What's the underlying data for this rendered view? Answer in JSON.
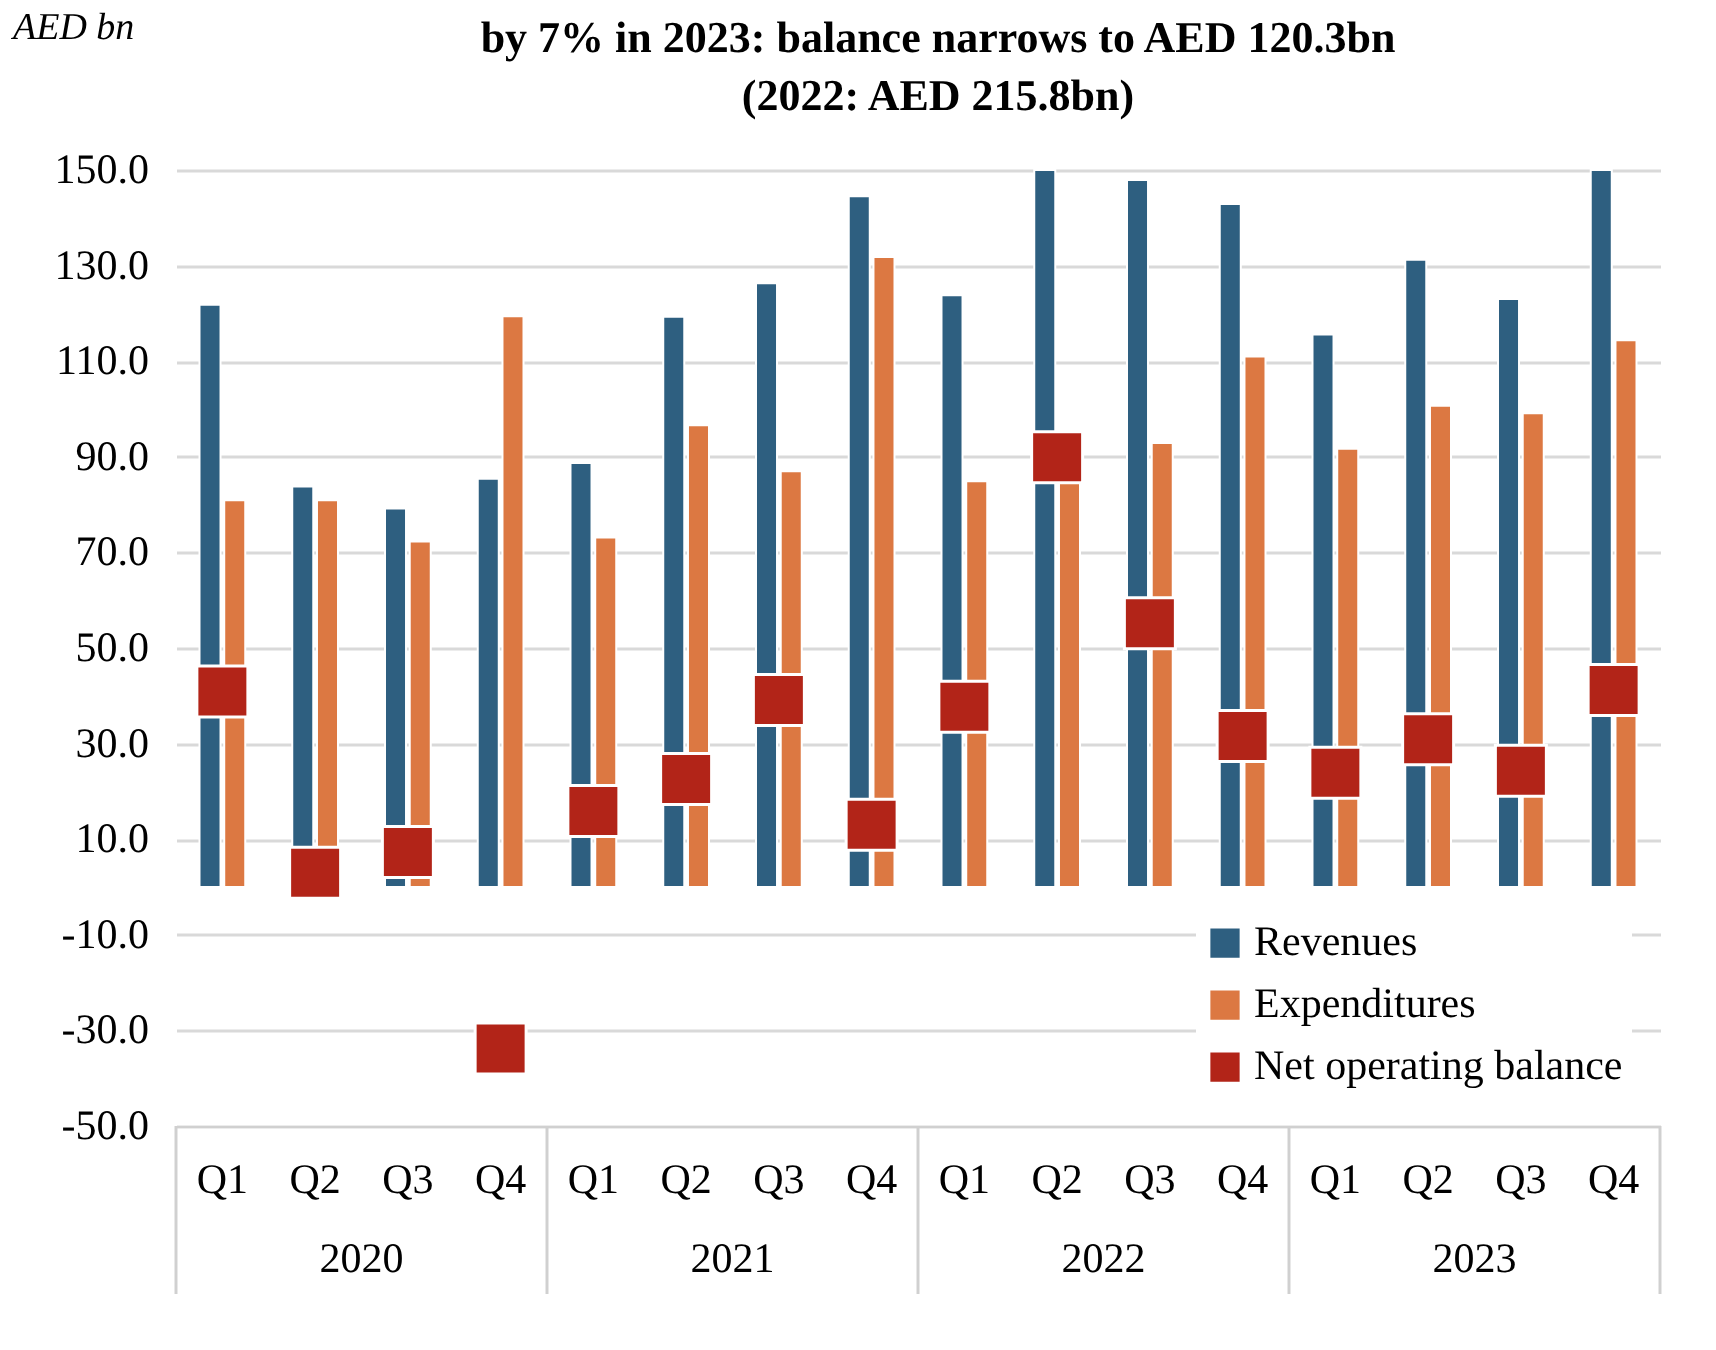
{
  "chart_data": {
    "type": "bar",
    "title": [
      "by 7% in 2023: balance narrows to AED 120.3bn",
      "(2022: AED 215.8bn)"
    ],
    "ylabel": "AED bn",
    "categories": [
      "Q1",
      "Q2",
      "Q3",
      "Q4",
      "Q1",
      "Q2",
      "Q3",
      "Q4",
      "Q1",
      "Q2",
      "Q3",
      "Q4",
      "Q1",
      "Q2",
      "Q3",
      "Q4"
    ],
    "annotations": [
      "2020",
      "2021",
      "2022",
      "2023"
    ],
    "series": [
      {
        "name": "Revenues",
        "color": "#2e5f80",
        "values": [
          121.8,
          83.8,
          79.2,
          85.4,
          88.7,
          119.3,
          126.3,
          144.5,
          123.8,
          150,
          147.9,
          142.9,
          115.6,
          131.2,
          123.0,
          150
        ]
      },
      {
        "name": "Expenditures",
        "color": "#dc7842",
        "values": [
          80.9,
          80.9,
          72.3,
          119.4,
          73.1,
          96.6,
          87.0,
          131.8,
          84.9,
          84.7,
          92.9,
          111.0,
          91.7,
          100.7,
          99.1,
          114.4
        ]
      },
      {
        "name": "Net operating balance",
        "type": "scatter",
        "marker": "square",
        "color": "#b22418",
        "values": [
          40.9,
          3.0,
          7.3,
          -33.8,
          15.9,
          22.6,
          39.1,
          13.0,
          37.7,
          89.9,
          55.2,
          31.6,
          23.9,
          30.9,
          24.3,
          41.2
        ]
      }
    ],
    "ylim": [
      -50,
      150
    ],
    "yticks": [
      {
        "value": -50,
        "label": "-50.0"
      },
      {
        "value": -30,
        "label": "-30.0"
      },
      {
        "value": -10,
        "label": "-10.0"
      },
      {
        "value": 10,
        "label": "10.0"
      },
      {
        "value": 30,
        "label": "30.0"
      },
      {
        "value": 50,
        "label": "50.0"
      },
      {
        "value": 70,
        "label": "70.0"
      },
      {
        "value": 90,
        "label": "90.0"
      },
      {
        "value": 110,
        "label": "110.0"
      },
      {
        "value": 130,
        "label": "130.0"
      },
      {
        "value": 150,
        "label": "150.0"
      }
    ],
    "grid": "y",
    "legend": "bottom right"
  }
}
